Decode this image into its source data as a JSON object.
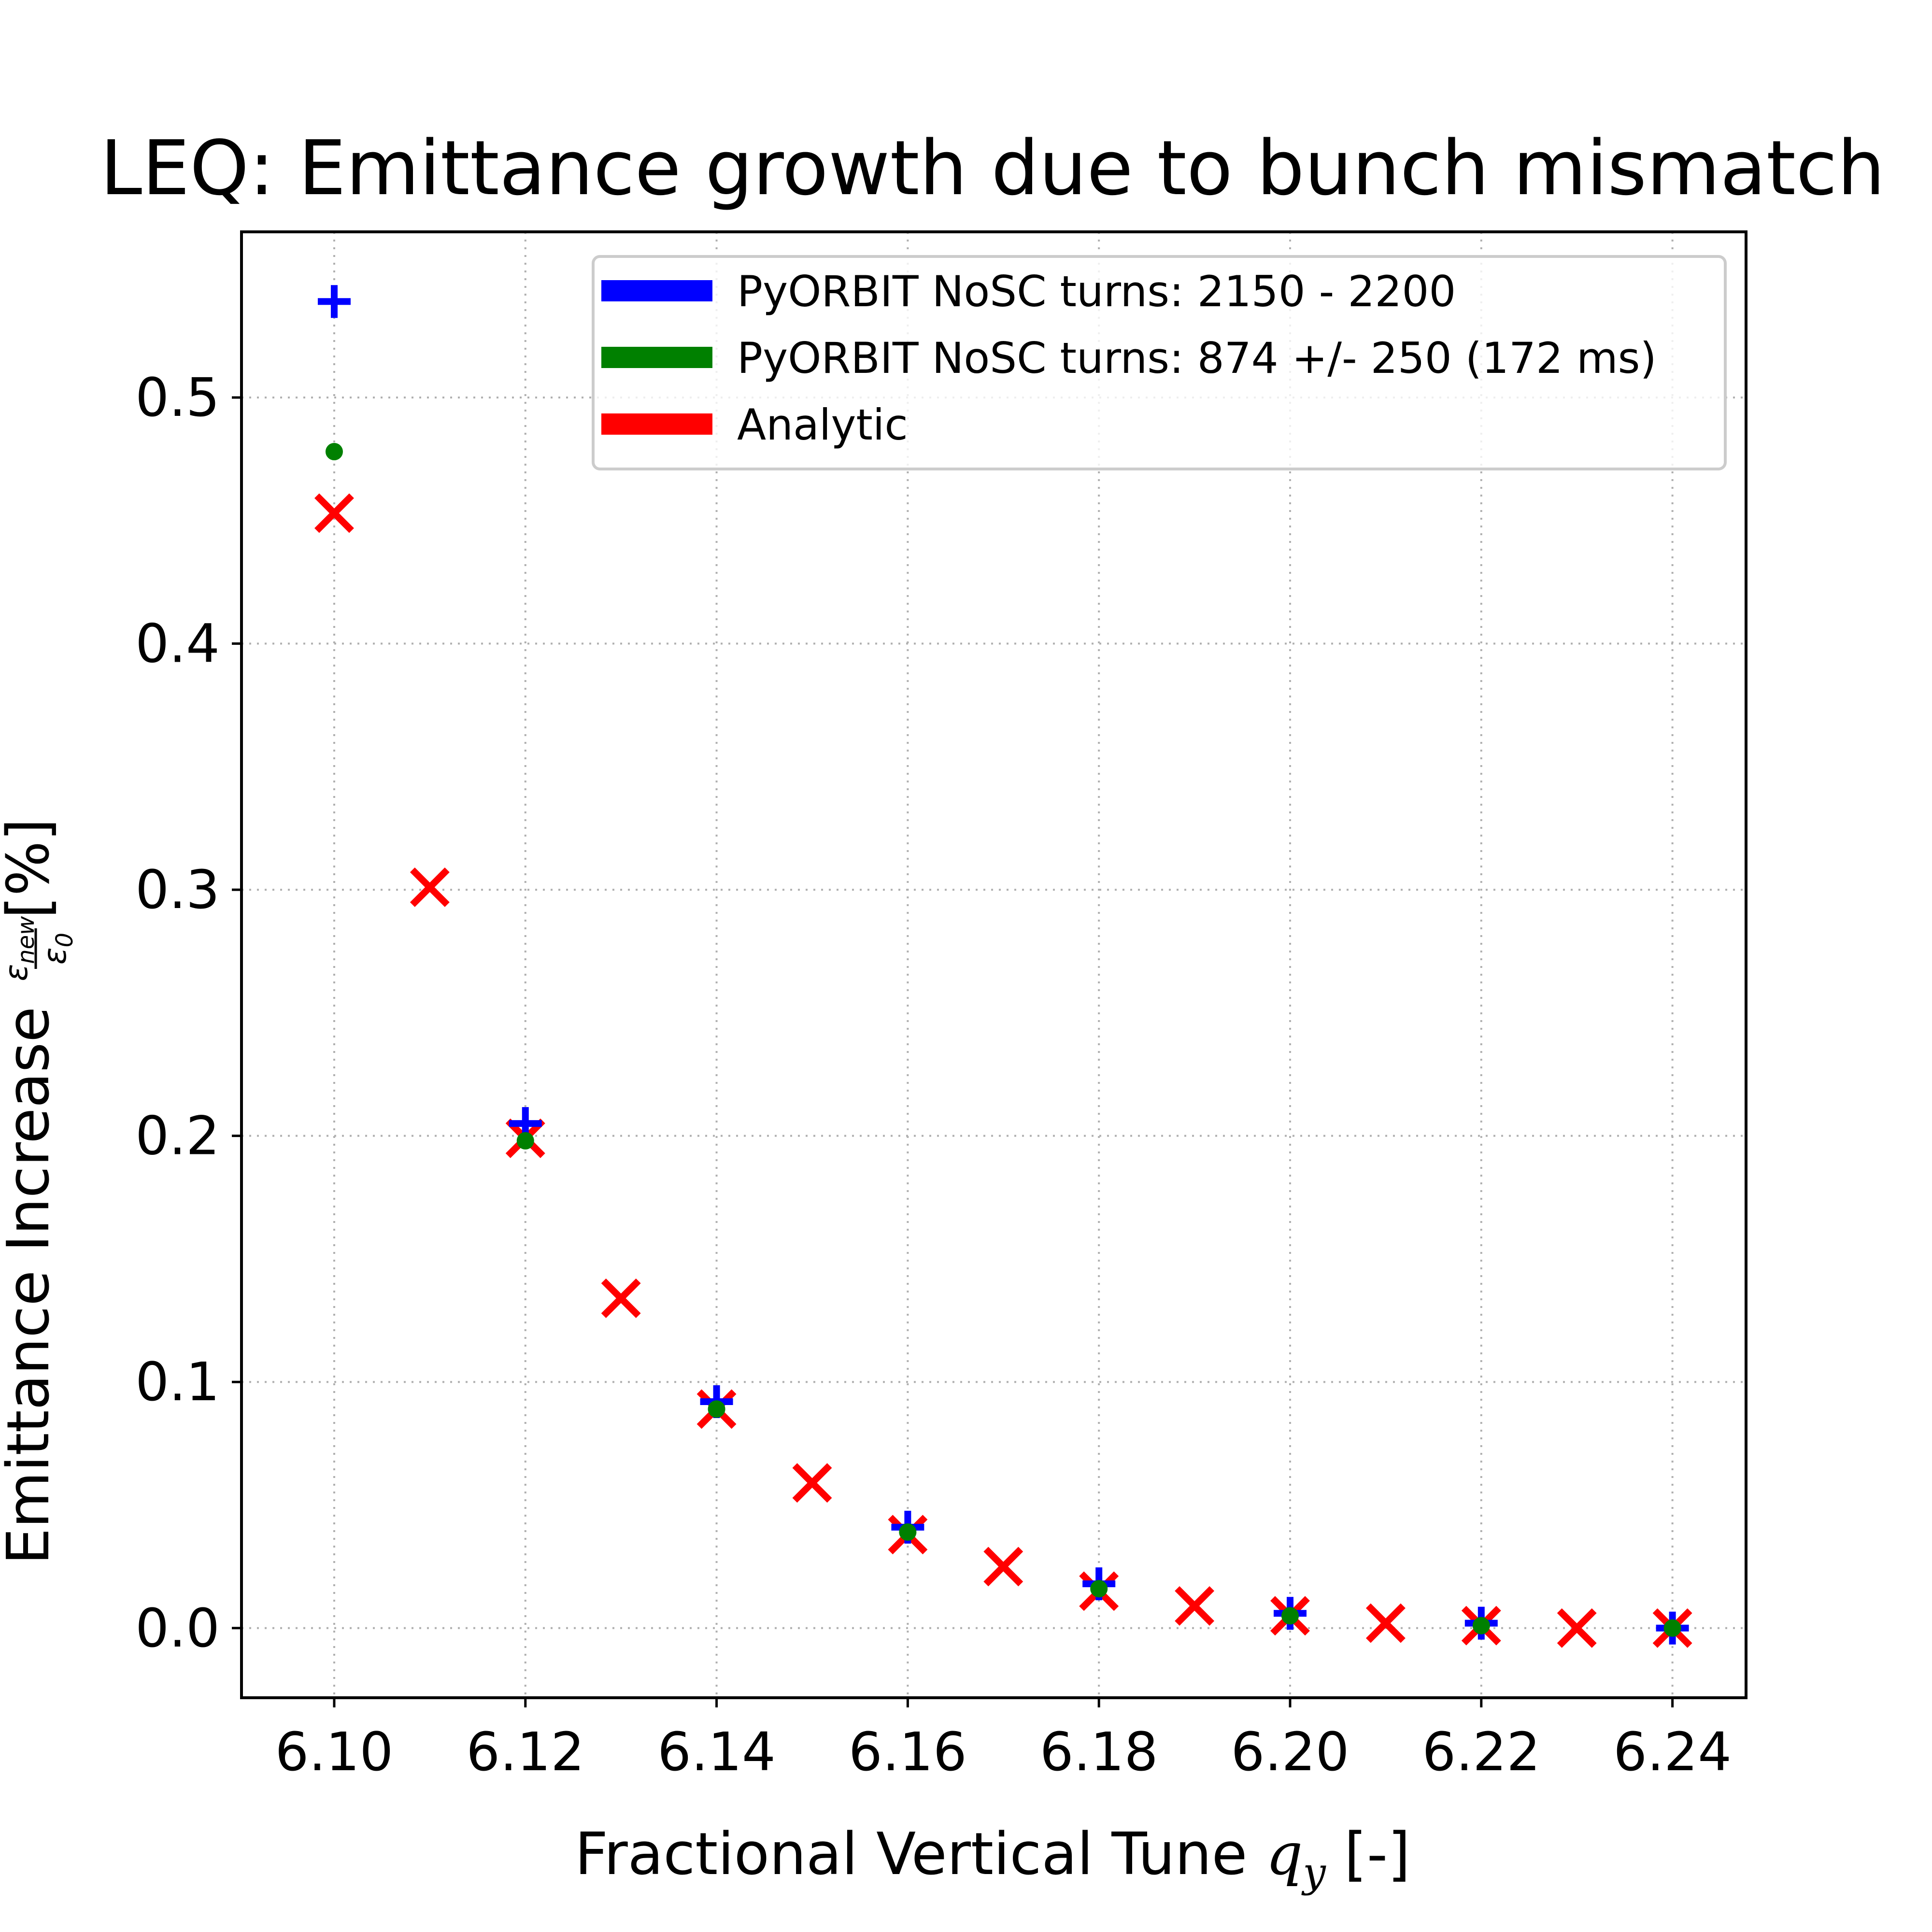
{
  "chart_data": {
    "type": "scatter",
    "title": "LEQ: Emittance growth due to bunch mismatch",
    "xlabel": "Fractional Vertical Tune q_y [-]",
    "xlabel_parts": {
      "main": "Fractional Vertical Tune ",
      "var": "q",
      "sub": "y",
      "end": " [-]"
    },
    "ylabel": "Emittance Increase ε_new/ε_0 [%]",
    "ylabel_parts": {
      "main": "Emittance Increase ",
      "num": "ε",
      "num_sub": "new",
      "den": "ε",
      "den_sub": "0",
      "end": " [%]"
    },
    "xlim": [
      6.0903,
      6.2477
    ],
    "ylim": [
      -0.0283,
      0.5673
    ],
    "xticks": [
      "6.10",
      "6.12",
      "6.14",
      "6.16",
      "6.18",
      "6.20",
      "6.22",
      "6.24"
    ],
    "xtick_values": [
      6.1,
      6.12,
      6.14,
      6.16,
      6.18,
      6.2,
      6.22,
      6.24
    ],
    "yticks": [
      "0.0",
      "0.1",
      "0.2",
      "0.3",
      "0.4",
      "0.5"
    ],
    "ytick_values": [
      0.0,
      0.1,
      0.2,
      0.3,
      0.4,
      0.5
    ],
    "grid": true,
    "legend_position": "top-right",
    "series": [
      {
        "name": "PyORBIT NoSC turns: 2150 - 2200",
        "color": "#0000ff",
        "marker": "plus",
        "x": [
          6.1,
          6.12,
          6.14,
          6.16,
          6.18,
          6.2,
          6.22,
          6.24
        ],
        "y": [
          0.539,
          0.205,
          0.092,
          0.041,
          0.018,
          0.006,
          0.002,
          0.0
        ]
      },
      {
        "name": "PyORBIT NoSC turns: 874 +/- 250 (172 ms)",
        "color": "#008000",
        "marker": "circle",
        "x": [
          6.1,
          6.12,
          6.14,
          6.16,
          6.18,
          6.2,
          6.22,
          6.24
        ],
        "y": [
          0.478,
          0.198,
          0.089,
          0.039,
          0.016,
          0.005,
          0.001,
          0.0
        ]
      },
      {
        "name": "Analytic",
        "color": "#ff0000",
        "marker": "x",
        "x": [
          6.1,
          6.11,
          6.12,
          6.13,
          6.14,
          6.15,
          6.16,
          6.17,
          6.18,
          6.19,
          6.2,
          6.21,
          6.22,
          6.23,
          6.24
        ],
        "y": [
          0.453,
          0.301,
          0.199,
          0.134,
          0.089,
          0.059,
          0.038,
          0.025,
          0.015,
          0.009,
          0.005,
          0.002,
          0.001,
          0.0,
          0.0
        ]
      }
    ]
  }
}
